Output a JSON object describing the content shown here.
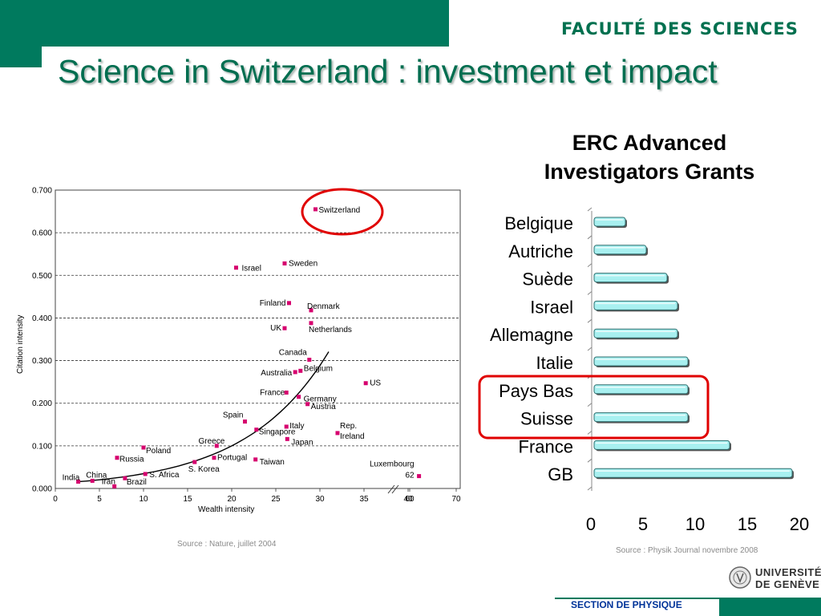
{
  "header": {
    "faculty": "FACULTÉ DES SCIENCES",
    "title": "Science in Switzerland : investment et impact",
    "brand_color": "#007A5E"
  },
  "left_source": "Source : Nature, juillet 2004",
  "right_source": "Source : Physik Journal novembre 2008",
  "footer": {
    "section": "SECTION DE PHYSIQUE",
    "university_line1": "UNIVERSITÉ",
    "university_line2": "DE GENÈVE"
  },
  "chart_data": [
    {
      "type": "scatter",
      "xlabel": "Wealth intensity",
      "ylabel": "Citation intensity",
      "xlim": [
        0,
        70
      ],
      "ylim": [
        0,
        0.7
      ],
      "x_ticks": [
        "0",
        "5",
        "10",
        "15",
        "20",
        "25",
        "30",
        "35",
        "40",
        "60",
        "70"
      ],
      "y_ticks": [
        "0.000",
        "0.100",
        "0.200",
        "0.300",
        "0.400",
        "0.500",
        "0.600",
        "0.700"
      ],
      "highlight": "Switzerland",
      "points": [
        {
          "label": "Switzerland",
          "x": 29.5,
          "y": 0.655
        },
        {
          "label": "Israel",
          "x": 20.5,
          "y": 0.518
        },
        {
          "label": "Sweden",
          "x": 26.0,
          "y": 0.528
        },
        {
          "label": "Finland",
          "x": 26.5,
          "y": 0.435
        },
        {
          "label": "Denmark",
          "x": 29.0,
          "y": 0.418
        },
        {
          "label": "UK",
          "x": 26.0,
          "y": 0.376
        },
        {
          "label": "Netherlands",
          "x": 29.0,
          "y": 0.388
        },
        {
          "label": "Canada",
          "x": 28.8,
          "y": 0.302
        },
        {
          "label": "Australia",
          "x": 27.2,
          "y": 0.273
        },
        {
          "label": "Belgium",
          "x": 27.8,
          "y": 0.276
        },
        {
          "label": "US",
          "x": 35.2,
          "y": 0.247
        },
        {
          "label": "France",
          "x": 26.2,
          "y": 0.225
        },
        {
          "label": "Germany",
          "x": 27.6,
          "y": 0.215
        },
        {
          "label": "Austria",
          "x": 28.6,
          "y": 0.198
        },
        {
          "label": "Spain",
          "x": 21.5,
          "y": 0.157
        },
        {
          "label": "Italy",
          "x": 26.2,
          "y": 0.145
        },
        {
          "label": "Rep. Ireland",
          "x": 32.0,
          "y": 0.13
        },
        {
          "label": "Singapore",
          "x": 22.8,
          "y": 0.138
        },
        {
          "label": "Japan",
          "x": 26.3,
          "y": 0.116
        },
        {
          "label": "Greece",
          "x": 18.3,
          "y": 0.1
        },
        {
          "label": "Poland",
          "x": 10.0,
          "y": 0.096
        },
        {
          "label": "Russia",
          "x": 7.0,
          "y": 0.072
        },
        {
          "label": "Portugal",
          "x": 18.0,
          "y": 0.072
        },
        {
          "label": "Taiwan",
          "x": 22.7,
          "y": 0.068
        },
        {
          "label": "S. Korea",
          "x": 15.8,
          "y": 0.062
        },
        {
          "label": "S. Africa",
          "x": 10.2,
          "y": 0.034
        },
        {
          "label": "China",
          "x": 4.2,
          "y": 0.018
        },
        {
          "label": "India",
          "x": 2.6,
          "y": 0.016
        },
        {
          "label": "Iran",
          "x": 6.7,
          "y": 0.005
        },
        {
          "label": "Brazil",
          "x": 7.9,
          "y": 0.024
        },
        {
          "label": "Luxembourg",
          "x": 62.0,
          "y": 0.029
        }
      ],
      "luxembourg_label": "Luxembourg",
      "luxembourg_value": "62"
    },
    {
      "type": "bar",
      "orientation": "horizontal",
      "title_line1": "ERC Advanced",
      "title_line2": "Investigators Grants",
      "categories": [
        "Belgique",
        "Autriche",
        "Suède",
        "Israel",
        "Allemagne",
        "Italie",
        "Pays Bas",
        "Suisse",
        "France",
        "GB"
      ],
      "values": [
        3,
        5,
        7,
        8,
        8,
        9,
        9,
        9,
        13,
        19
      ],
      "xlim": [
        0,
        20
      ],
      "x_ticks": [
        "0",
        "5",
        "10",
        "15",
        "20"
      ],
      "highlight": [
        "Pays Bas",
        "Suisse"
      ],
      "bar_color": "#A8F0F0",
      "highlight_color": "#E00000"
    }
  ]
}
